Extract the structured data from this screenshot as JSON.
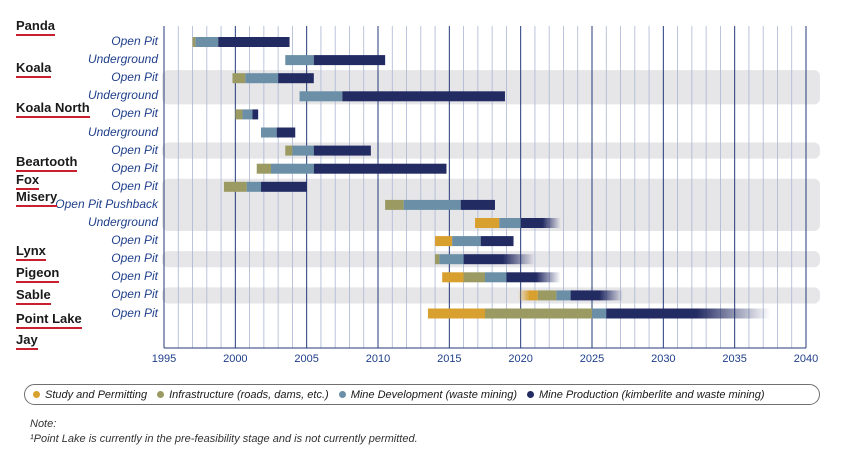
{
  "chart_data": {
    "type": "gantt",
    "x_ticks": [
      1995,
      2000,
      2005,
      2010,
      2015,
      2020,
      2025,
      2030,
      2035,
      2040
    ],
    "xlim": [
      1995,
      2040
    ],
    "phase_colors": {
      "study": "#d8a02e",
      "infrastructure": "#9a9a62",
      "development": "#6a8fa6",
      "production": "#232b63"
    },
    "mines": [
      {
        "name": "Panda",
        "rows": [
          {
            "label": "Open Pit",
            "phases": [
              {
                "phase": "infrastructure",
                "start": 1997.0,
                "end": 1997.2
              },
              {
                "phase": "development",
                "start": 1997.2,
                "end": 1998.8
              },
              {
                "phase": "production",
                "start": 1998.8,
                "end": 2003.8
              }
            ]
          },
          {
            "label": "Underground",
            "phases": [
              {
                "phase": "development",
                "start": 2003.5,
                "end": 2005.5
              },
              {
                "phase": "production",
                "start": 2005.5,
                "end": 2010.5
              }
            ]
          }
        ]
      },
      {
        "name": "Koala",
        "rows": [
          {
            "label": "Open Pit",
            "phases": [
              {
                "phase": "infrastructure",
                "start": 1999.8,
                "end": 2000.7
              },
              {
                "phase": "development",
                "start": 2000.7,
                "end": 2003.0
              },
              {
                "phase": "production",
                "start": 2003.0,
                "end": 2005.5
              }
            ]
          },
          {
            "label": "Underground",
            "phases": [
              {
                "phase": "development",
                "start": 2004.5,
                "end": 2007.5
              },
              {
                "phase": "production",
                "start": 2007.5,
                "end": 2018.9
              }
            ]
          }
        ]
      },
      {
        "name": "Koala North",
        "rows": [
          {
            "label": "Open Pit",
            "phases": [
              {
                "phase": "infrastructure",
                "start": 2000.0,
                "end": 2000.5
              },
              {
                "phase": "development",
                "start": 2000.5,
                "end": 2001.2
              },
              {
                "phase": "production",
                "start": 2001.2,
                "end": 2001.6
              }
            ]
          },
          {
            "label": "Underground",
            "phases": [
              {
                "phase": "development",
                "start": 2001.8,
                "end": 2002.9
              },
              {
                "phase": "production",
                "start": 2002.9,
                "end": 2004.2
              }
            ]
          }
        ]
      },
      {
        "name": "Beartooth",
        "rows": [
          {
            "label": "Open Pit",
            "phases": [
              {
                "phase": "infrastructure",
                "start": 2003.5,
                "end": 2004.0
              },
              {
                "phase": "development",
                "start": 2004.0,
                "end": 2005.5
              },
              {
                "phase": "production",
                "start": 2005.5,
                "end": 2009.5
              }
            ]
          }
        ]
      },
      {
        "name": "Fox",
        "rows": [
          {
            "label": "Open Pit",
            "phases": [
              {
                "phase": "infrastructure",
                "start": 2001.5,
                "end": 2002.5
              },
              {
                "phase": "development",
                "start": 2002.5,
                "end": 2005.5
              },
              {
                "phase": "production",
                "start": 2005.5,
                "end": 2014.8
              }
            ]
          }
        ]
      },
      {
        "name": "Misery",
        "rows": [
          {
            "label": "Open Pit",
            "phases": [
              {
                "phase": "infrastructure",
                "start": 1999.2,
                "end": 2000.8
              },
              {
                "phase": "development",
                "start": 2000.8,
                "end": 2001.8
              },
              {
                "phase": "production",
                "start": 2001.8,
                "end": 2005.0
              }
            ]
          },
          {
            "label": "Open Pit Pushback",
            "phases": [
              {
                "phase": "infrastructure",
                "start": 2010.5,
                "end": 2011.8
              },
              {
                "phase": "development",
                "start": 2011.8,
                "end": 2015.8
              },
              {
                "phase": "production",
                "start": 2015.8,
                "end": 2018.2
              }
            ]
          },
          {
            "label": "Underground",
            "phases": [
              {
                "phase": "study",
                "start": 2016.8,
                "end": 2018.5
              },
              {
                "phase": "development",
                "start": 2018.5,
                "end": 2020.0
              },
              {
                "phase": "production",
                "start": 2020.0,
                "end": 2022.8,
                "fade": true
              }
            ]
          }
        ]
      },
      {
        "name": "Lynx",
        "rows": [
          {
            "label": "Open Pit",
            "phases": [
              {
                "phase": "study",
                "start": 2014.0,
                "end": 2015.2
              },
              {
                "phase": "development",
                "start": 2015.2,
                "end": 2017.2
              },
              {
                "phase": "production",
                "start": 2017.2,
                "end": 2019.5
              }
            ]
          }
        ]
      },
      {
        "name": "Pigeon",
        "rows": [
          {
            "label": "Open Pit",
            "phases": [
              {
                "phase": "infrastructure",
                "start": 2014.0,
                "end": 2014.3
              },
              {
                "phase": "development",
                "start": 2014.3,
                "end": 2016.0
              },
              {
                "phase": "production",
                "start": 2016.0,
                "end": 2021.0,
                "fade": true
              }
            ]
          }
        ]
      },
      {
        "name": "Sable",
        "rows": [
          {
            "label": "Open Pit",
            "phases": [
              {
                "phase": "study",
                "start": 2014.5,
                "end": 2016.0
              },
              {
                "phase": "infrastructure",
                "start": 2016.0,
                "end": 2017.5
              },
              {
                "phase": "development",
                "start": 2017.5,
                "end": 2019.0
              },
              {
                "phase": "production",
                "start": 2019.0,
                "end": 2022.8,
                "fade": true
              }
            ]
          }
        ]
      },
      {
        "name": "Point Lake",
        "rows": [
          {
            "label": "Open Pit",
            "phases": [
              {
                "phase": "study",
                "start": 2019.8,
                "end": 2021.2,
                "fade_in": true
              },
              {
                "phase": "infrastructure",
                "start": 2021.2,
                "end": 2022.5
              },
              {
                "phase": "development",
                "start": 2022.5,
                "end": 2023.5
              },
              {
                "phase": "production",
                "start": 2023.5,
                "end": 2027.2,
                "fade": true
              }
            ]
          }
        ]
      },
      {
        "name": "Jay",
        "rows": [
          {
            "label": "Open Pit",
            "phases": [
              {
                "phase": "study",
                "start": 2013.5,
                "end": 2017.5
              },
              {
                "phase": "infrastructure",
                "start": 2017.5,
                "end": 2025.0
              },
              {
                "phase": "development",
                "start": 2025.0,
                "end": 2026.0
              },
              {
                "phase": "production",
                "start": 2026.0,
                "end": 2037.5,
                "fade": true
              }
            ]
          }
        ]
      }
    ]
  },
  "legend": [
    {
      "phase": "study",
      "label": "Study and Permitting"
    },
    {
      "phase": "infrastructure",
      "label": "Infrastructure (roads, dams, etc.)"
    },
    {
      "phase": "development",
      "label": "Mine Development (waste mining)"
    },
    {
      "phase": "production",
      "label": "Mine Production (kimberlite and waste mining)"
    }
  ],
  "note": {
    "title": "Note:",
    "text": "¹Point Lake is currently in the pre-feasibility stage and is not currently permitted."
  }
}
